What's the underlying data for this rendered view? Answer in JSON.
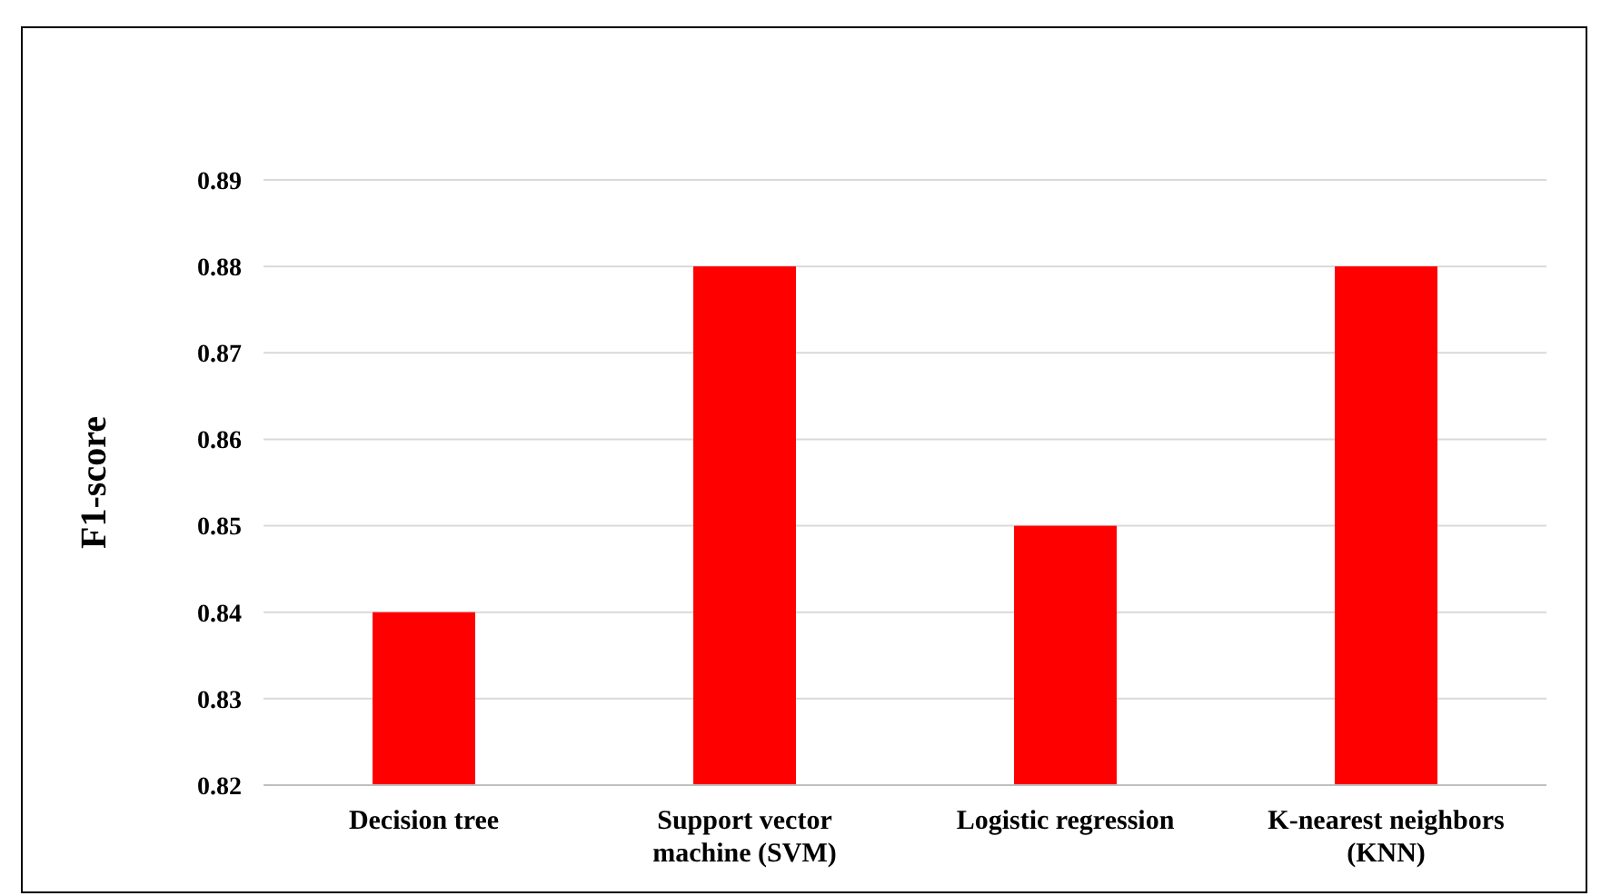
{
  "chart_data": {
    "type": "bar",
    "ylabel": "F1-score",
    "categories": [
      "Decision tree",
      "Support vector machine (SVM)",
      "Logistic regression",
      "K-nearest neighbors (KNN)"
    ],
    "values": [
      0.84,
      0.88,
      0.85,
      0.88
    ],
    "color": "#ff0000",
    "ylim": [
      0.82,
      0.89
    ],
    "yticks": [
      0.82,
      0.83,
      0.84,
      0.85,
      0.86,
      0.87,
      0.88,
      0.89
    ],
    "grid": "y"
  }
}
